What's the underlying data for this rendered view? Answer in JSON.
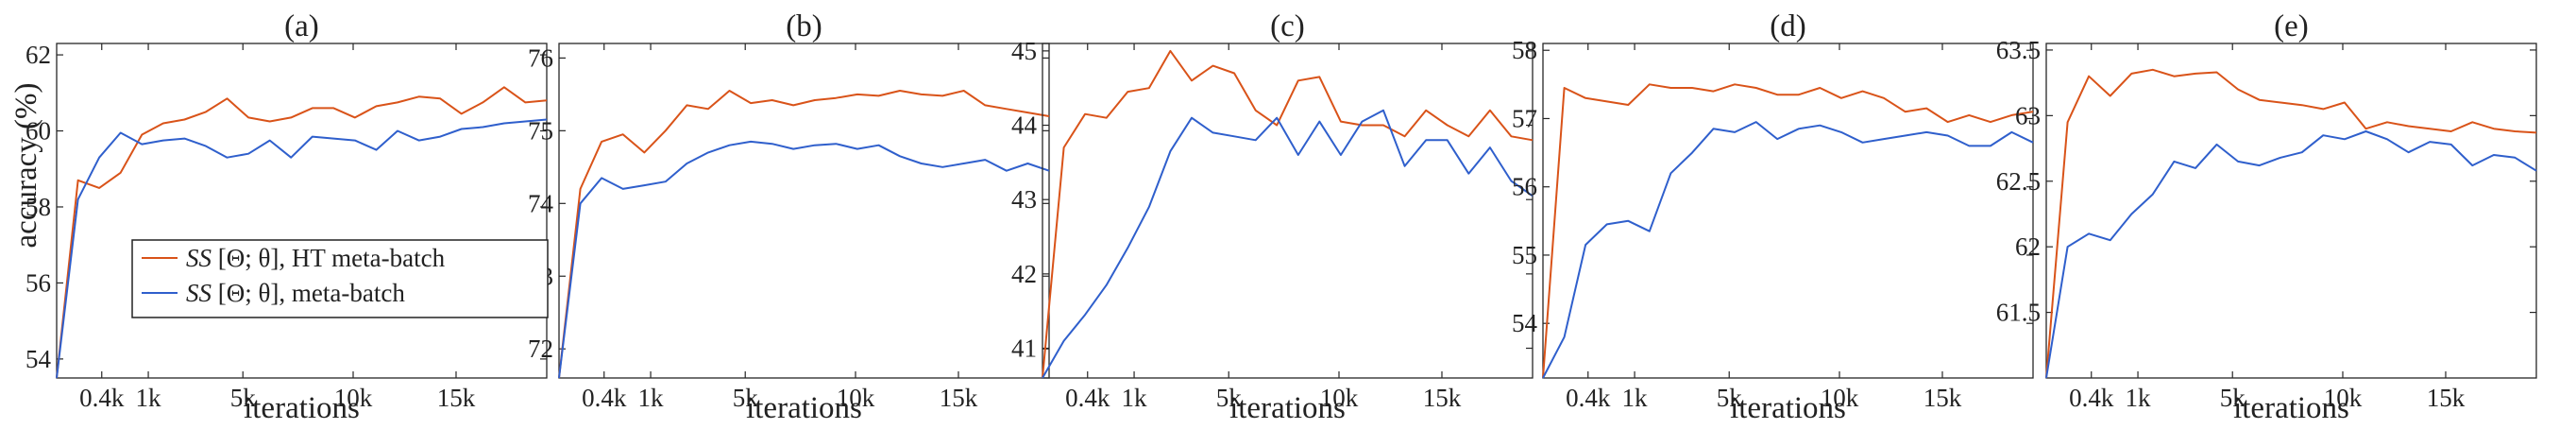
{
  "figure": {
    "ylabel": "accuracy (%)",
    "xlabel": "iterations",
    "legend": [
      {
        "prefix": "SS",
        "rest": " [Θ; θ], HT meta-batch",
        "color": "#d95319"
      },
      {
        "prefix": "SS",
        "rest": " [Θ; θ], meta-batch",
        "color": "#2f5fcc"
      }
    ]
  },
  "chart_data": [
    {
      "type": "line",
      "title": "(a)",
      "xlabel": "iterations",
      "ylabel": "accuracy (%)",
      "x_ticks": [
        "0.4k",
        "1k",
        "5k",
        "10k",
        "15k"
      ],
      "y_ticks": [
        "54",
        "56",
        "58",
        "60",
        "62"
      ],
      "ylim": [
        53.5,
        62.3
      ],
      "series": [
        {
          "name": "SS [Θ; θ], HT meta-batch",
          "color": "#d95319",
          "values": [
            53.5,
            58.7,
            58.5,
            58.9,
            59.9,
            60.2,
            60.3,
            60.5,
            60.85,
            60.35,
            60.25,
            60.35,
            60.6,
            60.6,
            60.35,
            60.65,
            60.75,
            60.9,
            60.85,
            60.45,
            60.75,
            61.15,
            60.75,
            60.8
          ]
        },
        {
          "name": "SS [Θ; θ], meta-batch",
          "color": "#2f5fcc",
          "values": [
            53.5,
            58.2,
            59.3,
            59.95,
            59.65,
            59.75,
            59.8,
            59.6,
            59.3,
            59.4,
            59.75,
            59.3,
            59.85,
            59.8,
            59.75,
            59.5,
            60.0,
            59.75,
            59.85,
            60.05,
            60.1,
            60.2,
            60.25,
            60.3
          ]
        }
      ]
    },
    {
      "type": "line",
      "title": "(b)",
      "xlabel": "iterations",
      "ylabel": "",
      "x_ticks": [
        "0.4k",
        "1k",
        "5k",
        "10k",
        "15k"
      ],
      "y_ticks": [
        "72",
        "73",
        "74",
        "75",
        "76"
      ],
      "ylim": [
        71.6,
        76.2
      ],
      "series": [
        {
          "name": "SS [Θ; θ], HT meta-batch",
          "color": "#d95319",
          "values": [
            71.6,
            74.2,
            74.85,
            74.95,
            74.7,
            75.0,
            75.35,
            75.3,
            75.55,
            75.38,
            75.42,
            75.35,
            75.42,
            75.45,
            75.5,
            75.48,
            75.55,
            75.5,
            75.48,
            75.55,
            75.35,
            75.3,
            75.25,
            75.2
          ]
        },
        {
          "name": "SS [Θ; θ], meta-batch",
          "color": "#2f5fcc",
          "values": [
            71.6,
            74.0,
            74.35,
            74.2,
            74.25,
            74.3,
            74.55,
            74.7,
            74.8,
            74.85,
            74.82,
            74.75,
            74.8,
            74.82,
            74.75,
            74.8,
            74.65,
            74.55,
            74.5,
            74.55,
            74.6,
            74.45,
            74.55,
            74.45
          ]
        }
      ]
    },
    {
      "type": "line",
      "title": "(c)",
      "xlabel": "iterations",
      "ylabel": "",
      "x_ticks": [
        "0.4k",
        "1k",
        "5k",
        "10k",
        "15k"
      ],
      "y_ticks": [
        "41",
        "42",
        "43",
        "44",
        "45"
      ],
      "ylim": [
        40.6,
        45.1
      ],
      "series": [
        {
          "name": "SS [Θ; θ], HT meta-batch",
          "color": "#d95319",
          "values": [
            40.6,
            43.7,
            44.15,
            44.1,
            44.45,
            44.5,
            45.0,
            44.6,
            44.8,
            44.7,
            44.2,
            44.0,
            44.6,
            44.65,
            44.05,
            44.0,
            44.0,
            43.85,
            44.2,
            44.0,
            43.85,
            44.2,
            43.85,
            43.8
          ]
        },
        {
          "name": "SS [Θ; θ], meta-batch",
          "color": "#2f5fcc",
          "values": [
            40.6,
            41.1,
            41.45,
            41.85,
            42.35,
            42.9,
            43.65,
            44.1,
            43.9,
            43.85,
            43.8,
            44.1,
            43.6,
            44.05,
            43.6,
            44.05,
            44.2,
            43.45,
            43.8,
            43.8,
            43.35,
            43.7,
            43.25,
            43.05
          ]
        }
      ]
    },
    {
      "type": "line",
      "title": "(d)",
      "xlabel": "iterations",
      "ylabel": "",
      "x_ticks": [
        "0.4k",
        "1k",
        "5k",
        "10k",
        "15k"
      ],
      "y_ticks": [
        "54",
        "55",
        "56",
        "57",
        "58"
      ],
      "ylim": [
        53.2,
        58.1
      ],
      "series": [
        {
          "name": "SS [Θ; θ], HT meta-batch",
          "color": "#d95319",
          "values": [
            53.2,
            57.45,
            57.3,
            57.25,
            57.2,
            57.5,
            57.45,
            57.45,
            57.4,
            57.5,
            57.45,
            57.35,
            57.35,
            57.45,
            57.3,
            57.4,
            57.3,
            57.1,
            57.15,
            56.95,
            57.05,
            56.95,
            57.05,
            57.1
          ]
        },
        {
          "name": "SS [Θ; θ], meta-batch",
          "color": "#2f5fcc",
          "values": [
            53.2,
            53.8,
            55.15,
            55.45,
            55.5,
            55.35,
            56.2,
            56.5,
            56.85,
            56.8,
            56.95,
            56.7,
            56.85,
            56.9,
            56.8,
            56.65,
            56.7,
            56.75,
            56.8,
            56.75,
            56.6,
            56.6,
            56.8,
            56.65
          ]
        }
      ]
    },
    {
      "type": "line",
      "title": "(e)",
      "xlabel": "iterations",
      "ylabel": "",
      "x_ticks": [
        "0.4k",
        "1k",
        "5k",
        "10k",
        "15k"
      ],
      "y_ticks": [
        "61.5",
        "62",
        "62.5",
        "63",
        "63.5"
      ],
      "ylim": [
        61.0,
        63.55
      ],
      "series": [
        {
          "name": "SS [Θ; θ], HT meta-batch",
          "color": "#d95319",
          "values": [
            61.0,
            62.95,
            63.3,
            63.15,
            63.32,
            63.35,
            63.3,
            63.32,
            63.33,
            63.2,
            63.12,
            63.1,
            63.08,
            63.05,
            63.1,
            62.9,
            62.95,
            62.92,
            62.9,
            62.88,
            62.95,
            62.9,
            62.88,
            62.87
          ]
        },
        {
          "name": "SS [Θ; θ], meta-batch",
          "color": "#2f5fcc",
          "values": [
            61.0,
            62.0,
            62.1,
            62.05,
            62.25,
            62.4,
            62.65,
            62.6,
            62.78,
            62.65,
            62.62,
            62.68,
            62.72,
            62.85,
            62.82,
            62.88,
            62.82,
            62.72,
            62.8,
            62.78,
            62.62,
            62.7,
            62.68,
            62.58
          ]
        }
      ]
    }
  ]
}
